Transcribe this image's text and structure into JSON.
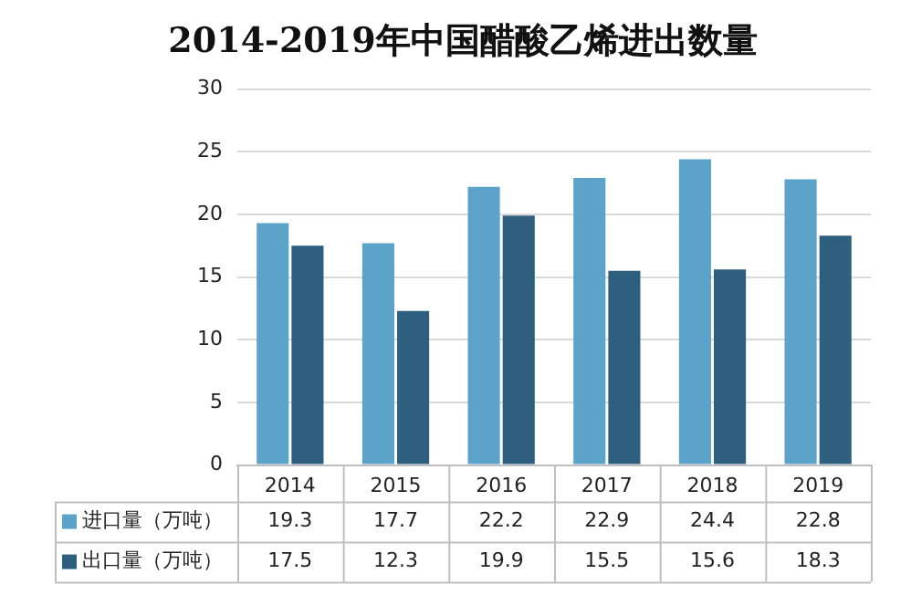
{
  "chart_data": {
    "type": "bar",
    "title": "2014-2019年中国醋酸乙烯进出数量",
    "categories": [
      "2014",
      "2015",
      "2016",
      "2017",
      "2018",
      "2019"
    ],
    "series": [
      {
        "name": "进口量（万吨）",
        "color": "#5ba3c9",
        "values": [
          19.3,
          17.7,
          22.2,
          22.9,
          24.4,
          22.8
        ]
      },
      {
        "name": "出口量（万吨）",
        "color": "#2e5f7e",
        "values": [
          17.5,
          12.3,
          19.9,
          15.5,
          15.6,
          18.3
        ]
      }
    ],
    "ylim": [
      0,
      30
    ],
    "yticks": [
      0,
      5,
      10,
      15,
      20,
      25,
      30
    ],
    "grid": "y",
    "legend": "bottom",
    "data_labels": true
  }
}
